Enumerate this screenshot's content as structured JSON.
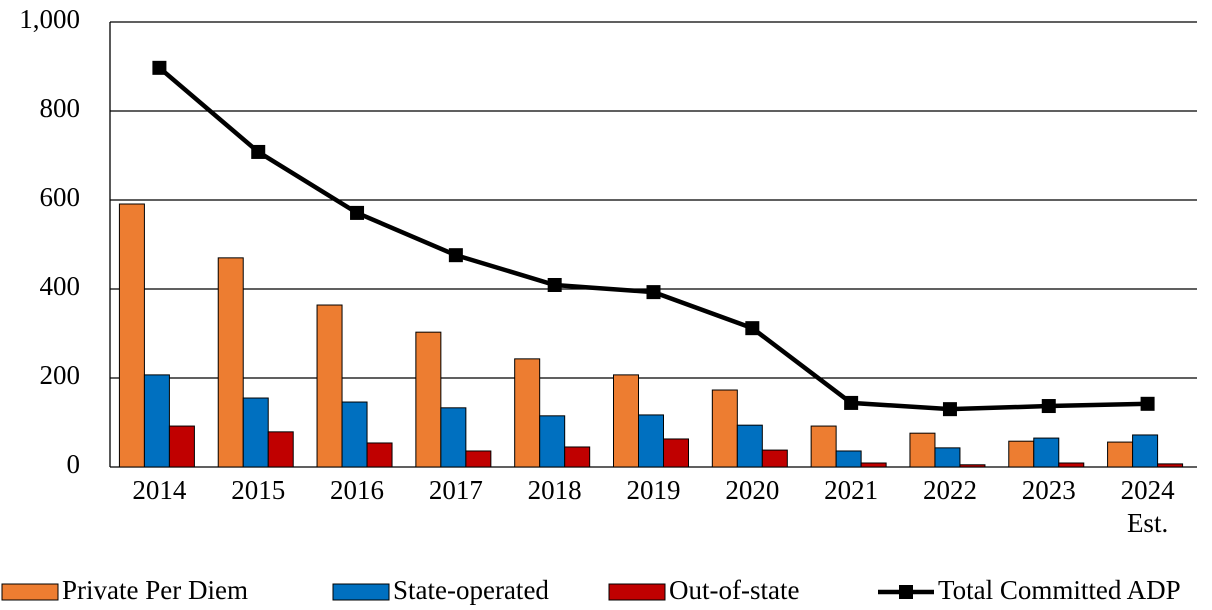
{
  "chart_data": {
    "type": "bar",
    "categories": [
      "2014",
      "2015",
      "2016",
      "2017",
      "2018",
      "2019",
      "2020",
      "2021",
      "2022",
      "2023",
      "2024\nEst."
    ],
    "series": [
      {
        "name": "Private Per Diem",
        "color": "#ed7d31",
        "values": [
          591,
          470,
          364,
          303,
          243,
          207,
          173,
          92,
          76,
          58,
          56
        ]
      },
      {
        "name": "State-operated",
        "color": "#0070c0",
        "values": [
          207,
          155,
          146,
          133,
          115,
          117,
          94,
          36,
          43,
          65,
          72
        ]
      },
      {
        "name": "Out-of-state",
        "color": "#c00000",
        "values": [
          92,
          79,
          54,
          36,
          45,
          63,
          38,
          9,
          5,
          9,
          7
        ]
      },
      {
        "name": "Total Committed ADP",
        "type": "line",
        "color": "#000000",
        "values": [
          897,
          708,
          571,
          476,
          409,
          393,
          312,
          144,
          130,
          137,
          142
        ]
      }
    ],
    "ylim": [
      0,
      1000
    ],
    "yticks": [
      0,
      200,
      400,
      600,
      800,
      {
        "value": 1000,
        "label": "1,000"
      }
    ],
    "grid": true,
    "legend": "bottom"
  }
}
